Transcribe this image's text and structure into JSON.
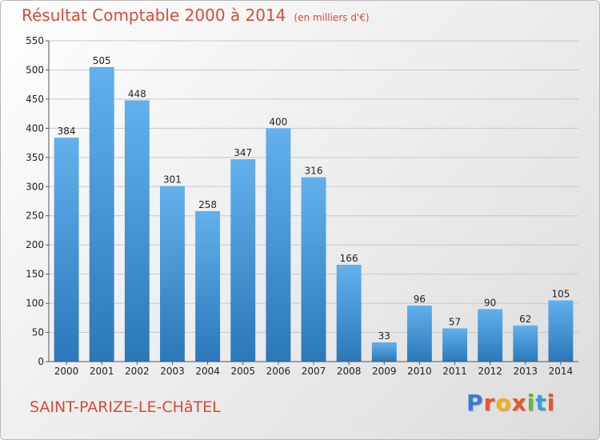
{
  "title": "Résultat Comptable 2000 à 2014",
  "subtitle": "(en milliers d'€)",
  "place": "SAINT-PARIZE-LE-CHâTEL",
  "logo": {
    "text": "Proxiti",
    "letters": [
      "P",
      "r",
      "o",
      "x",
      "i",
      "t",
      "i"
    ],
    "colors": [
      "#3a7bd5",
      "#e8562a",
      "#f2b01e",
      "#e8562a",
      "#6cb33f",
      "#3aa0d5",
      "#e8562a"
    ]
  },
  "colors": {
    "title": "#d94a38",
    "bar_top": "#62b0ec",
    "bar_bottom": "#2a78b8",
    "grid": "#c8c8c8"
  },
  "chart_data": {
    "type": "bar",
    "categories": [
      "2000",
      "2001",
      "2002",
      "2003",
      "2004",
      "2005",
      "2006",
      "2007",
      "2008",
      "2009",
      "2010",
      "2011",
      "2012",
      "2013",
      "2014"
    ],
    "values": [
      384,
      505,
      448,
      301,
      258,
      347,
      400,
      316,
      166,
      33,
      96,
      57,
      90,
      62,
      105
    ],
    "ylim": [
      0,
      550
    ],
    "yticks": [
      0,
      50,
      100,
      150,
      200,
      250,
      300,
      350,
      400,
      450,
      500,
      550
    ],
    "grid": true,
    "data_labels": true
  }
}
